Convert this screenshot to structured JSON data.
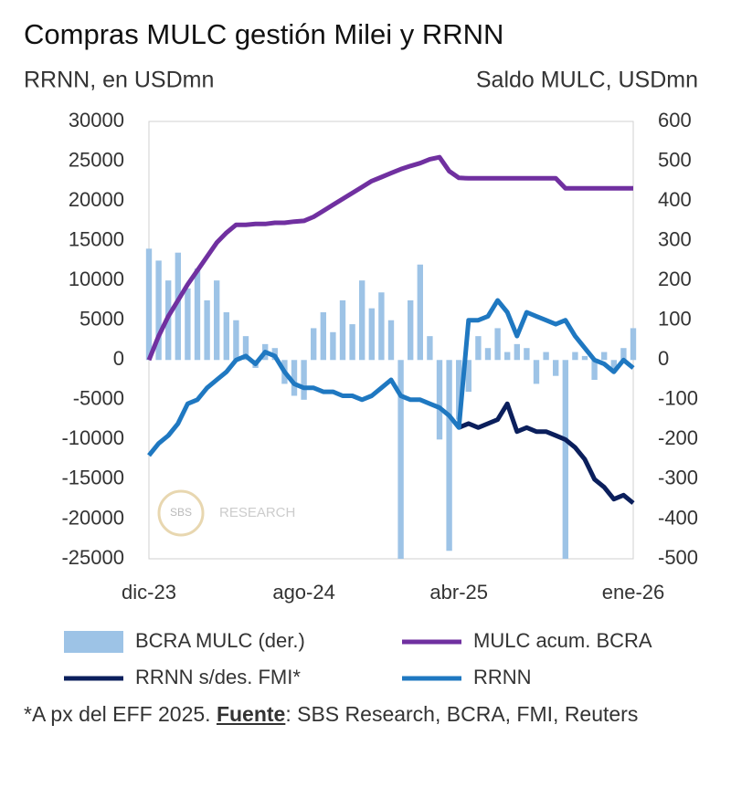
{
  "chart_data": {
    "type": "combo",
    "title": "Compras MULC gestión Milei y RRNN",
    "y_label": "RRNN, en USDmn",
    "y2_label": "Saldo MULC, USDmn",
    "watermark": [
      "SBS",
      "RESEARCH"
    ],
    "note": [
      "*A px del EFF 2025. ",
      "Fuente",
      ": SBS Research, BCRA, FMI, Reuters"
    ],
    "xlim": [
      0,
      25
    ],
    "xticks": [
      {
        "value": 0,
        "label": "dic-23"
      },
      {
        "value": 8,
        "label": "ago-24"
      },
      {
        "value": 16,
        "label": "abr-25"
      },
      {
        "value": 25,
        "label": "ene-26"
      }
    ],
    "ylim": [
      -25000,
      30000
    ],
    "yticks": [
      30000,
      25000,
      20000,
      15000,
      10000,
      5000,
      0,
      -5000,
      -10000,
      -15000,
      -20000,
      -25000
    ],
    "y2lim": [
      -500,
      600
    ],
    "y2ticks": [
      600,
      500,
      400,
      300,
      200,
      100,
      0,
      -100,
      -200,
      -300,
      -400,
      -500
    ],
    "x": [
      0,
      0.5,
      1,
      1.5,
      2,
      2.5,
      3,
      3.5,
      4,
      4.5,
      5,
      5.5,
      6,
      6.5,
      7,
      7.5,
      8,
      8.5,
      9,
      9.5,
      10,
      10.5,
      11,
      11.5,
      12,
      12.5,
      13,
      13.5,
      14,
      14.5,
      15,
      15.5,
      16,
      16.5,
      17,
      17.5,
      18,
      18.5,
      19,
      19.5,
      20,
      20.5,
      21,
      21.5,
      22,
      22.5,
      23,
      23.5,
      24,
      24.5,
      25
    ],
    "series": [
      {
        "name": "BCRA MULC (der.)",
        "type": "bar",
        "axis": "y2",
        "color": "#9dc3e6",
        "values": [
          280,
          250,
          200,
          270,
          180,
          230,
          150,
          200,
          120,
          100,
          60,
          -20,
          40,
          30,
          -60,
          -90,
          -100,
          80,
          120,
          70,
          150,
          90,
          200,
          130,
          170,
          100,
          -500,
          150,
          240,
          60,
          -200,
          -480,
          -150,
          -80,
          60,
          30,
          80,
          20,
          40,
          30,
          -60,
          20,
          -40,
          -500,
          20,
          10,
          -50,
          20,
          -30,
          30,
          80
        ]
      },
      {
        "name": "MULC acum. BCRA",
        "type": "line",
        "axis": "y2",
        "color": "#7030a0",
        "values": [
          0,
          60,
          110,
          150,
          190,
          225,
          260,
          295,
          320,
          340,
          340,
          342,
          342,
          345,
          345,
          348,
          350,
          360,
          375,
          390,
          405,
          420,
          435,
          450,
          460,
          470,
          480,
          488,
          495,
          505,
          510,
          475,
          458,
          457,
          457,
          457,
          457,
          457,
          457,
          457,
          457,
          457,
          457,
          432,
          432,
          432,
          432,
          432,
          432,
          432,
          432
        ]
      },
      {
        "name": "RRNN s/des. FMI*",
        "type": "line",
        "color": "#0b1f5c",
        "values": [
          null,
          null,
          null,
          null,
          null,
          null,
          null,
          null,
          null,
          null,
          null,
          null,
          null,
          null,
          null,
          null,
          null,
          null,
          null,
          null,
          null,
          null,
          null,
          null,
          null,
          null,
          null,
          null,
          null,
          null,
          null,
          null,
          -8500,
          -8000,
          -8500,
          -8000,
          -7500,
          -5500,
          -9000,
          -8500,
          -9000,
          -9000,
          -9500,
          -10000,
          -11000,
          -12500,
          -15000,
          -16000,
          -17500,
          -17000,
          -18000
        ]
      },
      {
        "name": "RRNN",
        "type": "line",
        "color": "#1f78c1",
        "values": [
          -12000,
          -10500,
          -9500,
          -8000,
          -5500,
          -5000,
          -3500,
          -2500,
          -1500,
          0,
          500,
          -500,
          1000,
          500,
          -1500,
          -3000,
          -3500,
          -3500,
          -4000,
          -4000,
          -4500,
          -4500,
          -5000,
          -4500,
          -3500,
          -2500,
          -4500,
          -5000,
          -5000,
          -5500,
          -6000,
          -7000,
          -8500,
          5000,
          5000,
          5500,
          7500,
          6000,
          3000,
          6000,
          5500,
          5000,
          4500,
          5000,
          3000,
          1500,
          0,
          -500,
          -1500,
          0,
          -1000
        ]
      }
    ]
  }
}
